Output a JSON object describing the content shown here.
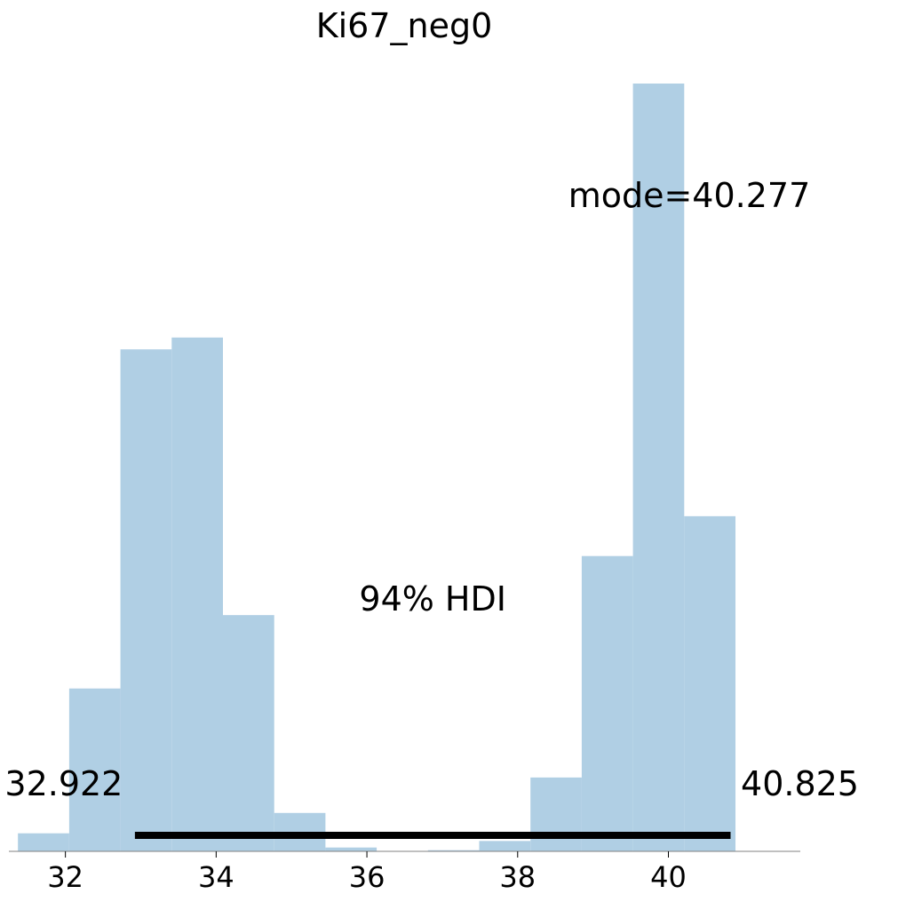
{
  "chart_data": {
    "type": "bar",
    "title": "Ki67_neg0",
    "xlabel": "",
    "ylabel": "",
    "xlim": [
      31.25,
      41.75
    ],
    "ylim": [
      0,
      1
    ],
    "bar_color": "#b0cfe4",
    "hdi_color": "#000000",
    "bins": [
      {
        "left": 31.37,
        "right": 32.05,
        "height": 0.0235
      },
      {
        "left": 32.05,
        "right": 32.73,
        "height": 0.2121
      },
      {
        "left": 32.73,
        "right": 33.41,
        "height": 0.6538
      },
      {
        "left": 33.41,
        "right": 34.09,
        "height": 0.6692
      },
      {
        "left": 34.09,
        "right": 34.77,
        "height": 0.3077
      },
      {
        "left": 34.77,
        "right": 35.45,
        "height": 0.05
      },
      {
        "left": 35.45,
        "right": 36.13,
        "height": 0.005
      },
      {
        "left": 36.13,
        "right": 36.81,
        "height": 0.0
      },
      {
        "left": 36.81,
        "right": 37.49,
        "height": 0.0015
      },
      {
        "left": 37.49,
        "right": 38.17,
        "height": 0.0135
      },
      {
        "left": 38.17,
        "right": 38.85,
        "height": 0.0962
      },
      {
        "left": 38.85,
        "right": 39.53,
        "height": 0.3846
      },
      {
        "left": 39.53,
        "right": 40.21,
        "height": 1.0
      },
      {
        "left": 40.21,
        "right": 40.89,
        "height": 0.4365
      }
    ],
    "x_ticks": [
      32,
      34,
      36,
      38,
      40
    ],
    "x_tick_labels": [
      "32",
      "34",
      "36",
      "38",
      "40"
    ],
    "hdi": {
      "prob_label": "94% HDI",
      "low": 32.922,
      "high": 40.825,
      "low_label": "32.922",
      "high_label": "40.825"
    },
    "mode": {
      "value": 40.277,
      "label": "mode=40.277"
    }
  }
}
